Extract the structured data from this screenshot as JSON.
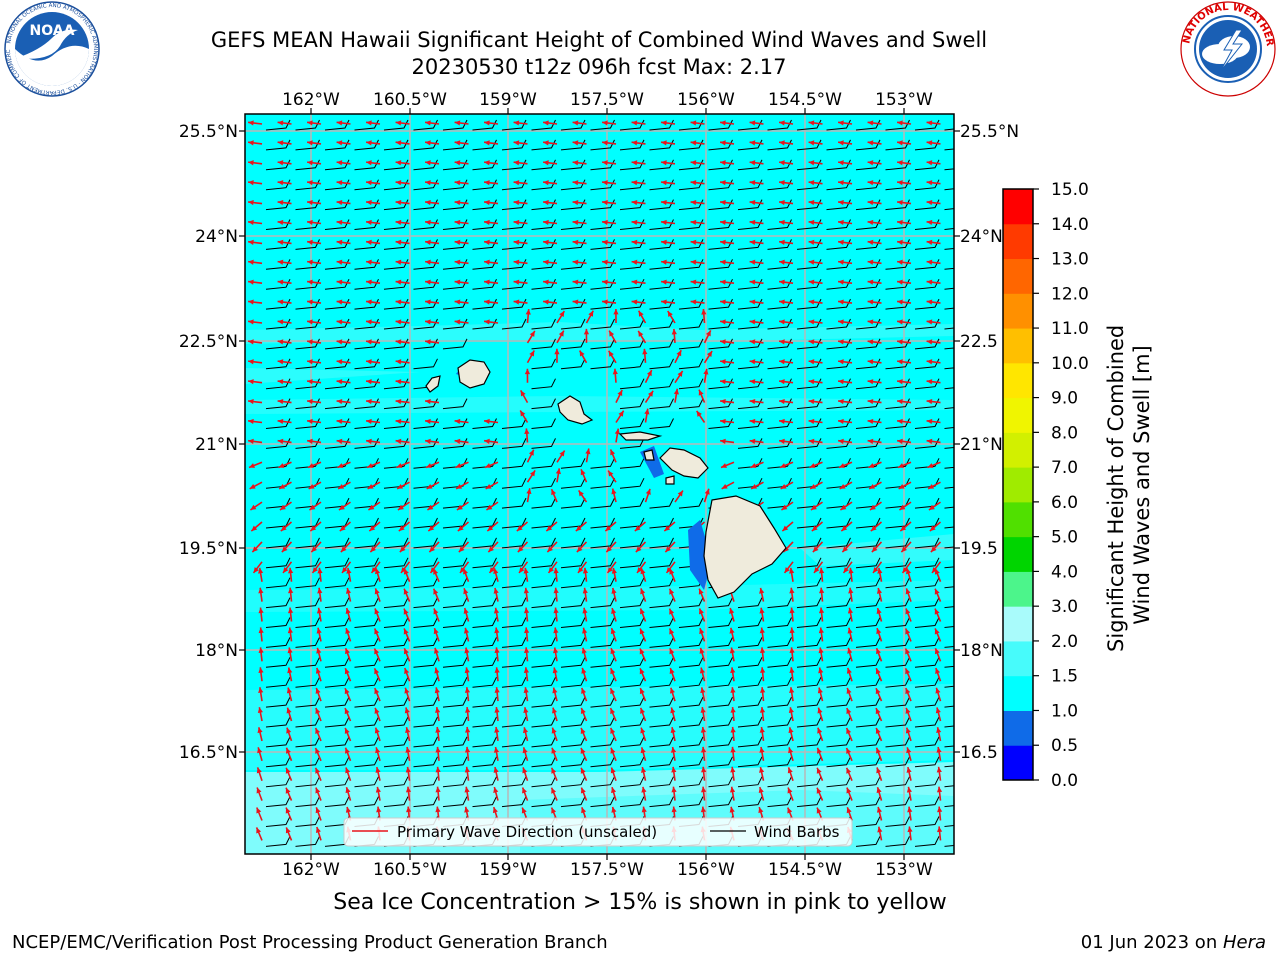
{
  "header": {
    "title_line1": "GEFS MEAN Hawaii Significant Height of Combined Wind Waves and Swell",
    "title_line2": "20230530 t12z 096h fcst   Max: 2.17"
  },
  "logos": {
    "left_icon": "noaa-logo-icon",
    "left_text": "NOAA",
    "left_ring_text": "NATIONAL OCEANIC AND ATMOSPHERIC ADMINISTRATION · U.S. DEPARTMENT OF COMMERCE",
    "right_icon": "nws-logo-icon",
    "right_ring_text": "NATIONAL WEATHER SERVICE"
  },
  "map": {
    "lon_ticks": [
      "162°W",
      "160.5°W",
      "159°W",
      "157.5°W",
      "156°W",
      "154.5°W",
      "153°W"
    ],
    "lat_ticks_left": [
      "25.5°N",
      "24°N",
      "22.5°N",
      "21°N",
      "19.5°N",
      "18°N",
      "16.5°N"
    ],
    "lat_ticks_right": [
      "25.5°N",
      "24°N",
      "22.5",
      "21°N",
      "19.5",
      "18°N",
      "16.5"
    ],
    "legend": {
      "wave_direction": "Primary Wave Direction (unscaled)",
      "wind_barbs": "Wind Barbs"
    },
    "ocean_color": "#00ffff",
    "land_color": "#efebdc",
    "arrow_color": "#e8141c",
    "barb_color": "#000000"
  },
  "colorbar": {
    "title_line1": "Significant Height of Combined",
    "title_line2": "Wind Waves and Swell [m]",
    "levels": [
      "0.0",
      "0.5",
      "1.0",
      "1.5",
      "2.0",
      "3.0",
      "4.0",
      "5.0",
      "6.0",
      "7.0",
      "8.0",
      "9.0",
      "10.0",
      "11.0",
      "12.0",
      "13.0",
      "14.0",
      "15.0"
    ],
    "colors": [
      "#0000ff",
      "#0f6be8",
      "#00ffff",
      "#47fbfb",
      "#a9fbfb",
      "#4cf58b",
      "#00d500",
      "#50e000",
      "#a0eb00",
      "#d2f000",
      "#f0f500",
      "#ffe600",
      "#ffbf00",
      "#ff9000",
      "#ff6600",
      "#ff3a00",
      "#ff0000"
    ]
  },
  "notes": {
    "sea_ice": "Sea Ice Concentration > 15% is shown in pink to yellow",
    "footer_left": "NCEP/EMC/Verification Post Processing Product Generation Branch",
    "footer_right_date": "01 Jun 2023 on ",
    "footer_right_host": "Hera"
  }
}
